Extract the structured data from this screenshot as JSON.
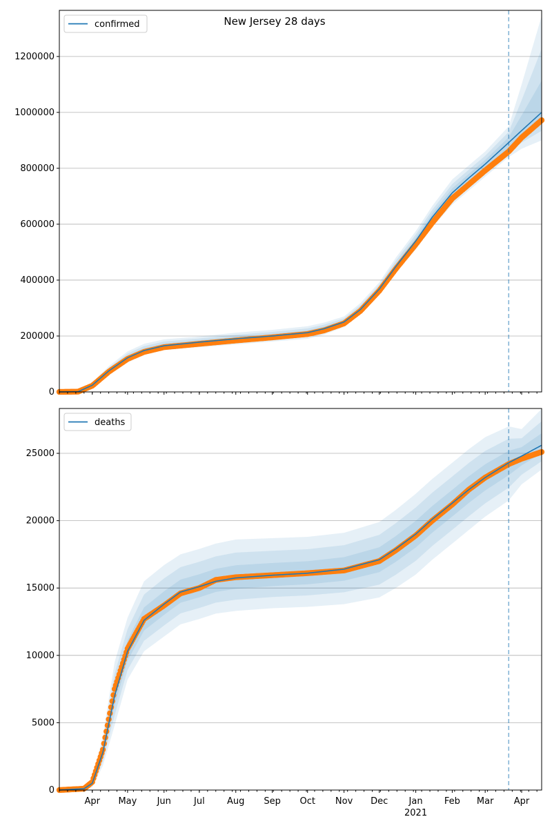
{
  "chart_data": [
    {
      "type": "line",
      "title": "New Jersey 28 days",
      "legend": {
        "label": "confirmed",
        "placement": "top-left"
      },
      "xlim": [
        "2020-03-04",
        "2021-04-18"
      ],
      "ylim": [
        0,
        1365000
      ],
      "yticks": [
        0,
        200000,
        400000,
        600000,
        800000,
        1000000,
        1200000
      ],
      "grid": "y",
      "forecast_start": "2021-03-21",
      "dates": [
        "2020-03-04",
        "2020-03-20",
        "2020-04-01",
        "2020-04-15",
        "2020-05-01",
        "2020-05-15",
        "2020-06-01",
        "2020-07-01",
        "2020-08-01",
        "2020-09-01",
        "2020-10-01",
        "2020-10-15",
        "2020-11-01",
        "2020-11-15",
        "2020-12-01",
        "2020-12-15",
        "2021-01-01",
        "2021-01-15",
        "2021-02-01",
        "2021-02-15",
        "2021-03-01",
        "2021-03-21",
        "2021-04-01",
        "2021-04-18"
      ],
      "observed": [
        0,
        1000,
        22000,
        72000,
        118000,
        143000,
        160000,
        172000,
        184000,
        195000,
        207000,
        220000,
        245000,
        290000,
        362000,
        440000,
        528000,
        605000,
        692000,
        742000,
        792000,
        860000,
        910000,
        972000
      ],
      "model": [
        0,
        1000,
        24000,
        75000,
        122000,
        148000,
        165000,
        178000,
        190000,
        200000,
        212000,
        226000,
        250000,
        295000,
        368000,
        448000,
        540000,
        625000,
        712000,
        765000,
        815000,
        892000,
        935000,
        1000000
      ],
      "band_outer_low": [
        0,
        0,
        15000,
        60000,
        105000,
        132000,
        150000,
        160000,
        170000,
        180000,
        190000,
        205000,
        232000,
        280000,
        350000,
        425000,
        510000,
        590000,
        670000,
        720000,
        770000,
        840000,
        870000,
        900000
      ],
      "band_outer_high": [
        0,
        2000,
        34000,
        92000,
        145000,
        172000,
        188000,
        198000,
        212000,
        222000,
        235000,
        248000,
        270000,
        318000,
        392000,
        480000,
        575000,
        665000,
        760000,
        810000,
        860000,
        950000,
        1100000,
        1345000
      ]
    },
    {
      "type": "line",
      "title": "",
      "legend": {
        "label": "deaths",
        "placement": "top-left"
      },
      "xlim": [
        "2020-03-04",
        "2021-04-18"
      ],
      "ylim": [
        0,
        28330
      ],
      "yticks": [
        0,
        5000,
        10000,
        15000,
        20000,
        25000
      ],
      "grid": "y",
      "forecast_start": "2021-03-21",
      "xticks": [
        "Apr",
        "May",
        "Jun",
        "Jul",
        "Aug",
        "Sep",
        "Oct",
        "Nov",
        "Dec",
        "Jan",
        "Feb",
        "Mar",
        "Apr"
      ],
      "xtick_dates": [
        "2020-04-01",
        "2020-05-01",
        "2020-06-01",
        "2020-07-01",
        "2020-08-01",
        "2020-09-01",
        "2020-10-01",
        "2020-11-01",
        "2020-12-01",
        "2021-01-01",
        "2021-02-01",
        "2021-03-01",
        "2021-04-01"
      ],
      "year_label": "2021",
      "dates": [
        "2020-03-04",
        "2020-03-25",
        "2020-04-01",
        "2020-04-10",
        "2020-04-20",
        "2020-05-01",
        "2020-05-15",
        "2020-06-01",
        "2020-06-15",
        "2020-07-01",
        "2020-07-15",
        "2020-08-01",
        "2020-09-01",
        "2020-10-01",
        "2020-11-01",
        "2020-12-01",
        "2020-12-15",
        "2021-01-01",
        "2021-01-15",
        "2021-02-01",
        "2021-02-15",
        "2021-03-01",
        "2021-03-21",
        "2021-04-01",
        "2021-04-18"
      ],
      "observed": [
        0,
        100,
        600,
        3000,
        7500,
        10500,
        12700,
        13700,
        14600,
        15000,
        15600,
        15800,
        15950,
        16100,
        16300,
        17000,
        17800,
        18900,
        20000,
        21200,
        22300,
        23200,
        24200,
        24600,
        25100
      ],
      "model": [
        0,
        100,
        500,
        2800,
        7000,
        10300,
        12600,
        13800,
        14700,
        15100,
        15500,
        15750,
        15950,
        16100,
        16400,
        17100,
        17900,
        19000,
        20100,
        21300,
        22300,
        23200,
        24300,
        24800,
        25600
      ],
      "band_outer_low": [
        0,
        0,
        200,
        1800,
        4800,
        8200,
        10300,
        11400,
        12300,
        12700,
        13100,
        13300,
        13500,
        13600,
        13800,
        14300,
        15000,
        16000,
        17100,
        18300,
        19300,
        20300,
        21500,
        22700,
        23800
      ],
      "band_outer_high": [
        0,
        300,
        900,
        4000,
        9500,
        12800,
        15500,
        16700,
        17500,
        17900,
        18300,
        18600,
        18700,
        18800,
        19100,
        19900,
        20800,
        22000,
        23100,
        24300,
        25300,
        26200,
        27000,
        26800,
        28300
      ]
    }
  ],
  "colors": {
    "model": "#1f77b4",
    "observed": "#ff7f0e",
    "band": "#1f77b4"
  }
}
